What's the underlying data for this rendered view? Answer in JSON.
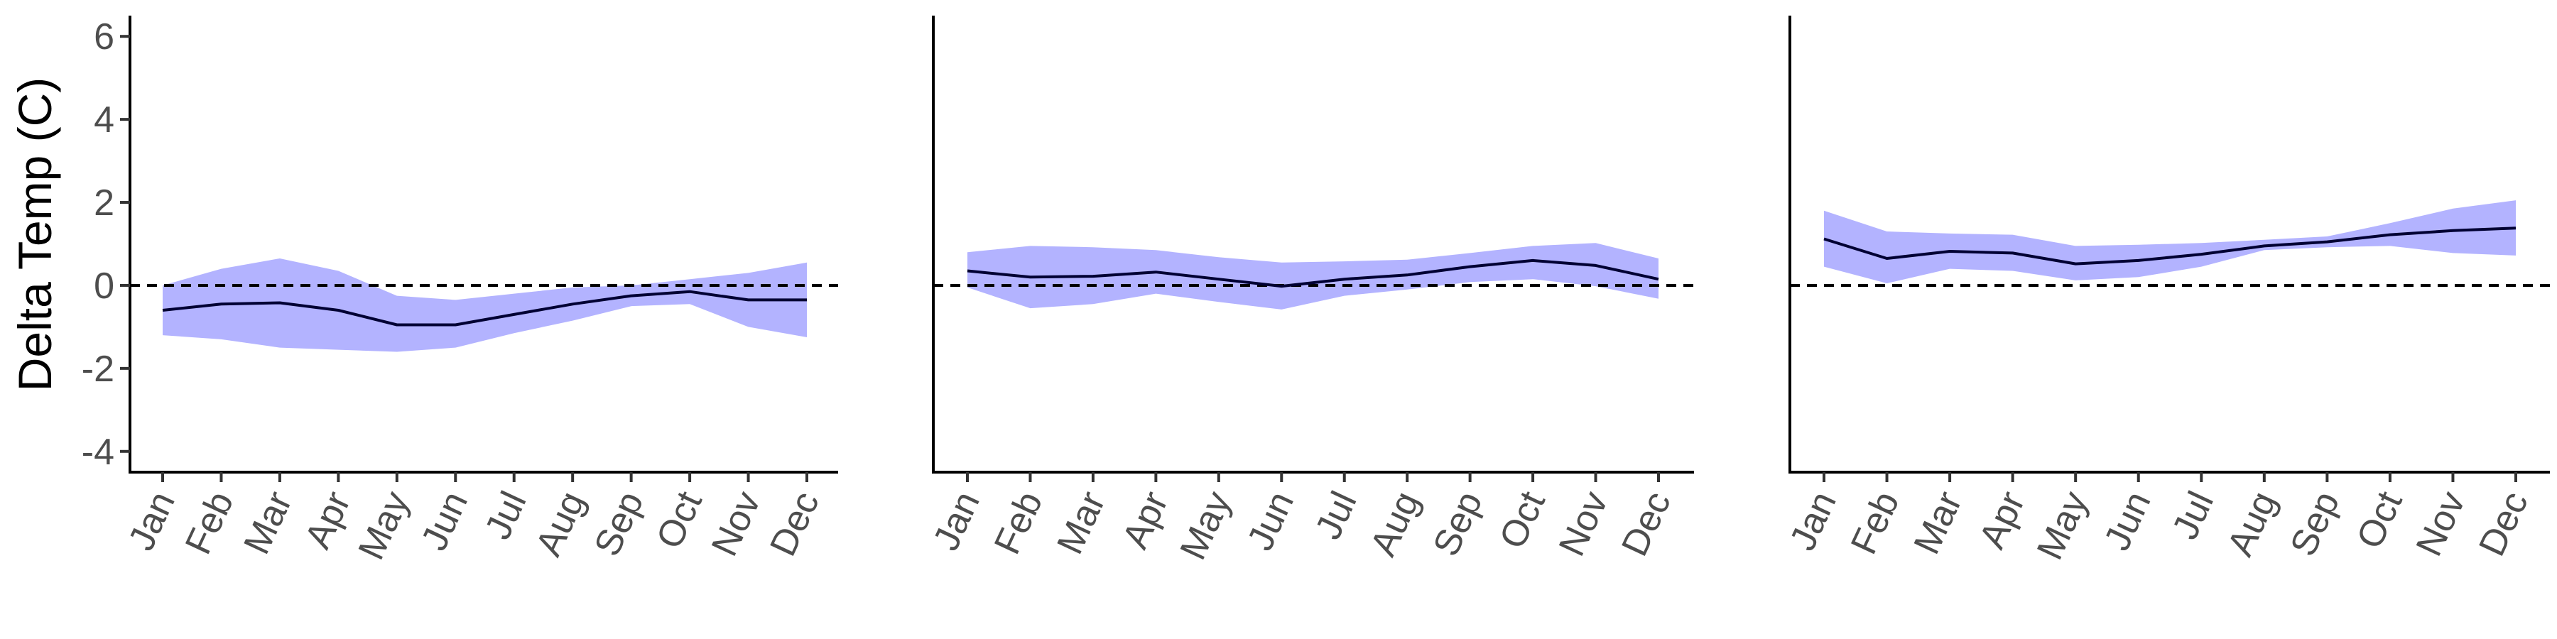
{
  "chart_data": {
    "type": "line",
    "ylabel": "Delta Temp (C)",
    "ylim": [
      -4.5,
      6.5
    ],
    "yticks": [
      -4,
      -2,
      0,
      2,
      4,
      6
    ],
    "months": [
      "Jan",
      "Feb",
      "Mar",
      "Apr",
      "May",
      "Jun",
      "Jul",
      "Aug",
      "Sep",
      "Oct",
      "Nov",
      "Dec"
    ],
    "reference_line": 0,
    "colors": {
      "ribbon": "#b3b3ff",
      "line": "#000033",
      "reference": "#000000"
    },
    "panels": [
      {
        "mean": [
          -0.6,
          -0.45,
          -0.42,
          -0.6,
          -0.95,
          -0.95,
          -0.7,
          -0.45,
          -0.25,
          -0.15,
          -0.35,
          -0.35
        ],
        "upper": [
          0.0,
          0.4,
          0.65,
          0.35,
          -0.25,
          -0.35,
          -0.2,
          -0.05,
          0.0,
          0.15,
          0.3,
          0.55
        ],
        "lower": [
          -1.2,
          -1.3,
          -1.5,
          -1.55,
          -1.6,
          -1.5,
          -1.15,
          -0.85,
          -0.5,
          -0.45,
          -1.0,
          -1.25
        ]
      },
      {
        "mean": [
          0.35,
          0.2,
          0.22,
          0.32,
          0.15,
          -0.02,
          0.15,
          0.25,
          0.45,
          0.6,
          0.48,
          0.15
        ],
        "upper": [
          0.8,
          0.95,
          0.92,
          0.85,
          0.68,
          0.55,
          0.58,
          0.62,
          0.78,
          0.95,
          1.02,
          0.65
        ],
        "lower": [
          -0.05,
          -0.55,
          -0.45,
          -0.2,
          -0.4,
          -0.58,
          -0.25,
          -0.1,
          0.08,
          0.15,
          -0.02,
          -0.32
        ]
      },
      {
        "mean": [
          1.12,
          0.65,
          0.82,
          0.78,
          0.52,
          0.6,
          0.75,
          0.95,
          1.05,
          1.22,
          1.32,
          1.38
        ],
        "upper": [
          1.8,
          1.3,
          1.25,
          1.22,
          0.95,
          0.98,
          1.02,
          1.1,
          1.18,
          1.5,
          1.85,
          2.05
        ],
        "lower": [
          0.45,
          0.05,
          0.4,
          0.35,
          0.12,
          0.2,
          0.45,
          0.85,
          0.92,
          0.95,
          0.78,
          0.72
        ]
      }
    ]
  }
}
